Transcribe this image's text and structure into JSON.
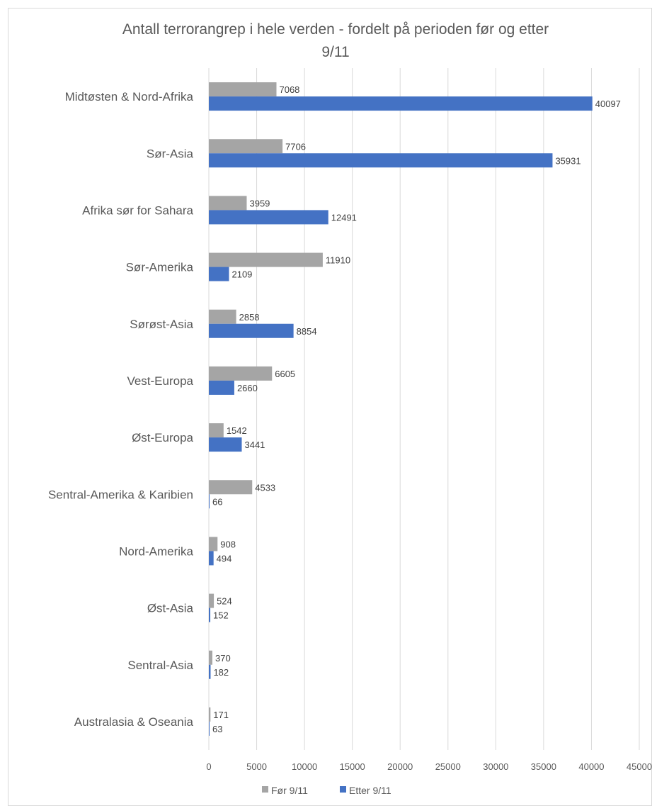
{
  "chart_data": {
    "type": "bar",
    "orientation": "horizontal",
    "title": "Antall terrorangrep i hele verden - fordelt på perioden før og etter 9/11",
    "title_lines": [
      "Antall terrorangrep i hele verden - fordelt på perioden før og etter",
      "9/11"
    ],
    "categories": [
      "Midtøsten & Nord-Afrika",
      "Sør-Asia",
      "Afrika sør for Sahara",
      "Sør-Amerika",
      "Sørøst-Asia",
      "Vest-Europa",
      "Øst-Europa",
      "Sentral-Amerika & Karibien",
      "Nord-Amerika",
      "Øst-Asia",
      "Sentral-Asia",
      "Australasia & Oseania"
    ],
    "series": [
      {
        "name": "Før 9/11",
        "color": "#a5a5a5",
        "values": [
          7068,
          7706,
          3959,
          11910,
          2858,
          6605,
          1542,
          4533,
          908,
          524,
          370,
          171
        ]
      },
      {
        "name": "Etter 9/11",
        "color": "#4472c4",
        "values": [
          40097,
          35931,
          12491,
          2109,
          8854,
          2660,
          3441,
          66,
          494,
          152,
          182,
          63
        ]
      }
    ],
    "xlim": [
      0,
      45000
    ],
    "xticks": [
      "0",
      "5000",
      "10000",
      "15000",
      "20000",
      "25000",
      "30000",
      "35000",
      "40000",
      "45000"
    ],
    "grid": true,
    "legend": "bottom",
    "data_labels": true
  }
}
